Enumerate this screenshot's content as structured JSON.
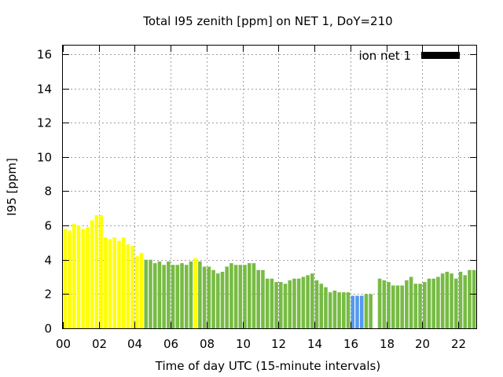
{
  "chart_data": {
    "type": "bar",
    "title": "Total I95 zenith [ppm] on NET 1, DoY=210",
    "xlabel": "Time of day UTC (15-minute intervals)",
    "ylabel": "I95 [ppm]",
    "xlim": [
      0,
      23
    ],
    "ylim": [
      0,
      16.5
    ],
    "x_unit": "hours UTC",
    "bar_width_hours": 0.2,
    "yticks": [
      0,
      2,
      4,
      6,
      8,
      10,
      12,
      14,
      16
    ],
    "xticks": [
      {
        "value": 0,
        "label": "00"
      },
      {
        "value": 2,
        "label": "02"
      },
      {
        "value": 4,
        "label": "04"
      },
      {
        "value": 6,
        "label": "06"
      },
      {
        "value": 8,
        "label": "08"
      },
      {
        "value": 10,
        "label": "10"
      },
      {
        "value": 12,
        "label": "12"
      },
      {
        "value": 14,
        "label": "14"
      },
      {
        "value": 16,
        "label": "16"
      },
      {
        "value": 18,
        "label": "18"
      },
      {
        "value": 20,
        "label": "20"
      },
      {
        "value": 22,
        "label": "22"
      }
    ],
    "grid": true,
    "legend": {
      "label": "ion net 1",
      "position": "top-right",
      "color": "#000000"
    },
    "category_colors": {
      "yellow": "#ffff00",
      "green": "#77bb44",
      "blue": "#5599ee"
    },
    "bars": [
      {
        "x": 0.125,
        "value": 5.8,
        "category": "yellow"
      },
      {
        "x": 0.375,
        "value": 5.7,
        "category": "yellow"
      },
      {
        "x": 0.625,
        "value": 6.1,
        "category": "yellow"
      },
      {
        "x": 0.875,
        "value": 6.0,
        "category": "yellow"
      },
      {
        "x": 1.125,
        "value": 5.8,
        "category": "yellow"
      },
      {
        "x": 1.375,
        "value": 5.9,
        "category": "yellow"
      },
      {
        "x": 1.625,
        "value": 6.3,
        "category": "yellow"
      },
      {
        "x": 1.875,
        "value": 6.6,
        "category": "yellow"
      },
      {
        "x": 2.125,
        "value": 6.6,
        "category": "yellow"
      },
      {
        "x": 2.375,
        "value": 5.3,
        "category": "yellow"
      },
      {
        "x": 2.625,
        "value": 5.2,
        "category": "yellow"
      },
      {
        "x": 2.875,
        "value": 5.3,
        "category": "yellow"
      },
      {
        "x": 3.125,
        "value": 5.1,
        "category": "yellow"
      },
      {
        "x": 3.375,
        "value": 5.3,
        "category": "yellow"
      },
      {
        "x": 3.625,
        "value": 4.9,
        "category": "yellow"
      },
      {
        "x": 3.875,
        "value": 4.8,
        "category": "yellow"
      },
      {
        "x": 4.125,
        "value": 4.2,
        "category": "yellow"
      },
      {
        "x": 4.375,
        "value": 4.4,
        "category": "yellow"
      },
      {
        "x": 4.625,
        "value": 4.0,
        "category": "green"
      },
      {
        "x": 4.875,
        "value": 4.0,
        "category": "green"
      },
      {
        "x": 5.125,
        "value": 3.8,
        "category": "green"
      },
      {
        "x": 5.375,
        "value": 3.9,
        "category": "green"
      },
      {
        "x": 5.625,
        "value": 3.7,
        "category": "green"
      },
      {
        "x": 5.875,
        "value": 3.9,
        "category": "green"
      },
      {
        "x": 6.125,
        "value": 3.7,
        "category": "green"
      },
      {
        "x": 6.375,
        "value": 3.7,
        "category": "green"
      },
      {
        "x": 6.625,
        "value": 3.8,
        "category": "green"
      },
      {
        "x": 6.875,
        "value": 3.7,
        "category": "green"
      },
      {
        "x": 7.125,
        "value": 3.9,
        "category": "green"
      },
      {
        "x": 7.375,
        "value": 4.1,
        "category": "yellow"
      },
      {
        "x": 7.625,
        "value": 3.9,
        "category": "green"
      },
      {
        "x": 7.875,
        "value": 3.6,
        "category": "green"
      },
      {
        "x": 8.125,
        "value": 3.6,
        "category": "green"
      },
      {
        "x": 8.375,
        "value": 3.4,
        "category": "green"
      },
      {
        "x": 8.625,
        "value": 3.2,
        "category": "green"
      },
      {
        "x": 8.875,
        "value": 3.3,
        "category": "green"
      },
      {
        "x": 9.125,
        "value": 3.6,
        "category": "green"
      },
      {
        "x": 9.375,
        "value": 3.8,
        "category": "green"
      },
      {
        "x": 9.625,
        "value": 3.7,
        "category": "green"
      },
      {
        "x": 9.875,
        "value": 3.7,
        "category": "green"
      },
      {
        "x": 10.125,
        "value": 3.7,
        "category": "green"
      },
      {
        "x": 10.375,
        "value": 3.8,
        "category": "green"
      },
      {
        "x": 10.625,
        "value": 3.8,
        "category": "green"
      },
      {
        "x": 10.875,
        "value": 3.4,
        "category": "green"
      },
      {
        "x": 11.125,
        "value": 3.4,
        "category": "green"
      },
      {
        "x": 11.375,
        "value": 2.9,
        "category": "green"
      },
      {
        "x": 11.625,
        "value": 2.9,
        "category": "green"
      },
      {
        "x": 11.875,
        "value": 2.7,
        "category": "green"
      },
      {
        "x": 12.125,
        "value": 2.7,
        "category": "green"
      },
      {
        "x": 12.375,
        "value": 2.6,
        "category": "green"
      },
      {
        "x": 12.625,
        "value": 2.8,
        "category": "green"
      },
      {
        "x": 12.875,
        "value": 2.9,
        "category": "green"
      },
      {
        "x": 13.125,
        "value": 2.9,
        "category": "green"
      },
      {
        "x": 13.375,
        "value": 3.0,
        "category": "green"
      },
      {
        "x": 13.625,
        "value": 3.1,
        "category": "green"
      },
      {
        "x": 13.875,
        "value": 3.2,
        "category": "green"
      },
      {
        "x": 14.125,
        "value": 2.8,
        "category": "green"
      },
      {
        "x": 14.375,
        "value": 2.6,
        "category": "green"
      },
      {
        "x": 14.625,
        "value": 2.4,
        "category": "green"
      },
      {
        "x": 14.875,
        "value": 2.1,
        "category": "green"
      },
      {
        "x": 15.125,
        "value": 2.2,
        "category": "green"
      },
      {
        "x": 15.375,
        "value": 2.1,
        "category": "green"
      },
      {
        "x": 15.625,
        "value": 2.1,
        "category": "green"
      },
      {
        "x": 15.875,
        "value": 2.1,
        "category": "green"
      },
      {
        "x": 16.125,
        "value": 1.9,
        "category": "blue"
      },
      {
        "x": 16.375,
        "value": 1.9,
        "category": "blue"
      },
      {
        "x": 16.625,
        "value": 1.9,
        "category": "blue"
      },
      {
        "x": 16.875,
        "value": 2.0,
        "category": "green"
      },
      {
        "x": 17.125,
        "value": 2.0,
        "category": "green"
      },
      {
        "x": 17.625,
        "value": 2.9,
        "category": "green"
      },
      {
        "x": 17.875,
        "value": 2.8,
        "category": "green"
      },
      {
        "x": 18.125,
        "value": 2.7,
        "category": "green"
      },
      {
        "x": 18.375,
        "value": 2.5,
        "category": "green"
      },
      {
        "x": 18.625,
        "value": 2.5,
        "category": "green"
      },
      {
        "x": 18.875,
        "value": 2.5,
        "category": "green"
      },
      {
        "x": 19.125,
        "value": 2.8,
        "category": "green"
      },
      {
        "x": 19.375,
        "value": 3.0,
        "category": "green"
      },
      {
        "x": 19.625,
        "value": 2.6,
        "category": "green"
      },
      {
        "x": 19.875,
        "value": 2.6,
        "category": "green"
      },
      {
        "x": 20.125,
        "value": 2.7,
        "category": "green"
      },
      {
        "x": 20.375,
        "value": 2.9,
        "category": "green"
      },
      {
        "x": 20.625,
        "value": 2.9,
        "category": "green"
      },
      {
        "x": 20.875,
        "value": 3.0,
        "category": "green"
      },
      {
        "x": 21.125,
        "value": 3.2,
        "category": "green"
      },
      {
        "x": 21.375,
        "value": 3.3,
        "category": "green"
      },
      {
        "x": 21.625,
        "value": 3.2,
        "category": "green"
      },
      {
        "x": 21.875,
        "value": 2.9,
        "category": "green"
      },
      {
        "x": 22.125,
        "value": 3.3,
        "category": "green"
      },
      {
        "x": 22.375,
        "value": 3.1,
        "category": "green"
      },
      {
        "x": 22.625,
        "value": 3.4,
        "category": "green"
      },
      {
        "x": 22.875,
        "value": 3.4,
        "category": "green"
      }
    ]
  }
}
